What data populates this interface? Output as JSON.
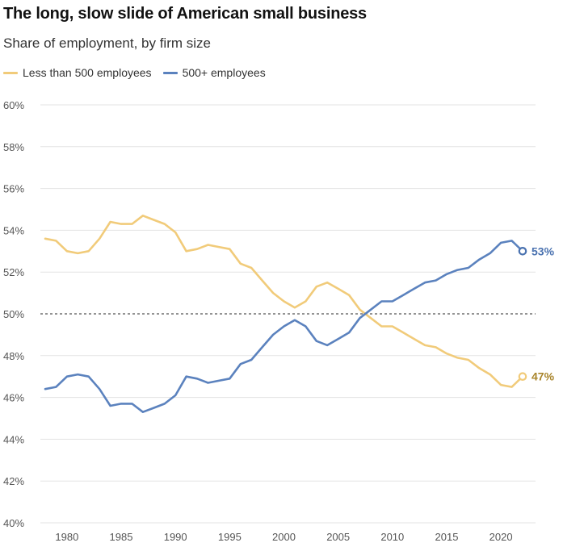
{
  "title": "The long, slow slide of American small business",
  "subtitle": "Share of employment, by firm size",
  "colors": {
    "small": "#F1CB7A",
    "large": "#5B82BE",
    "small_label": "#A8842A",
    "large_label": "#4A72B0",
    "grid": "#e3e3e3",
    "reference": "#555555"
  },
  "chart_data": {
    "type": "line",
    "title": "The long, slow slide of American small business",
    "subtitle": "Share of employment, by firm size",
    "xlabel": "",
    "ylabel": "",
    "xlim": [
      1977,
      2023
    ],
    "ylim": [
      40,
      60
    ],
    "y_ticks": [
      40,
      42,
      44,
      46,
      48,
      50,
      52,
      54,
      56,
      58,
      60
    ],
    "y_tick_labels": [
      "40%",
      "42%",
      "44%",
      "46%",
      "48%",
      "50%",
      "52%",
      "54%",
      "56%",
      "58%",
      "60%"
    ],
    "x_ticks": [
      1980,
      1985,
      1990,
      1995,
      2000,
      2005,
      2010,
      2015,
      2020
    ],
    "x_tick_labels": [
      "1980",
      "1985",
      "1990",
      "1995",
      "2000",
      "2005",
      "2010",
      "2015",
      "2020"
    ],
    "reference_line": 50,
    "grid": true,
    "legend_position": "top-left",
    "x": [
      1978,
      1979,
      1980,
      1981,
      1982,
      1983,
      1984,
      1985,
      1986,
      1987,
      1988,
      1989,
      1990,
      1991,
      1992,
      1993,
      1994,
      1995,
      1996,
      1997,
      1998,
      1999,
      2000,
      2001,
      2002,
      2003,
      2004,
      2005,
      2006,
      2007,
      2008,
      2009,
      2010,
      2011,
      2012,
      2013,
      2014,
      2015,
      2016,
      2017,
      2018,
      2019,
      2020,
      2021,
      2022
    ],
    "series": [
      {
        "name": "Less than 500 employees",
        "color": "#F1CB7A",
        "end_label": "47%",
        "values": [
          53.6,
          53.5,
          53.0,
          52.9,
          53.0,
          53.6,
          54.4,
          54.3,
          54.3,
          54.7,
          54.5,
          54.3,
          53.9,
          53.0,
          53.1,
          53.3,
          53.2,
          53.1,
          52.4,
          52.2,
          51.6,
          51.0,
          50.6,
          50.3,
          50.6,
          51.3,
          51.5,
          51.2,
          50.9,
          50.2,
          49.8,
          49.4,
          49.4,
          49.1,
          48.8,
          48.5,
          48.4,
          48.1,
          47.9,
          47.8,
          47.4,
          47.1,
          46.6,
          46.5,
          47.0
        ]
      },
      {
        "name": "500+ employees",
        "color": "#5B82BE",
        "end_label": "53%",
        "values": [
          46.4,
          46.5,
          47.0,
          47.1,
          47.0,
          46.4,
          45.6,
          45.7,
          45.7,
          45.3,
          45.5,
          45.7,
          46.1,
          47.0,
          46.9,
          46.7,
          46.8,
          46.9,
          47.6,
          47.8,
          48.4,
          49.0,
          49.4,
          49.7,
          49.4,
          48.7,
          48.5,
          48.8,
          49.1,
          49.8,
          50.2,
          50.6,
          50.6,
          50.9,
          51.2,
          51.5,
          51.6,
          51.9,
          52.1,
          52.2,
          52.6,
          52.9,
          53.4,
          53.5,
          53.0
        ]
      }
    ]
  }
}
